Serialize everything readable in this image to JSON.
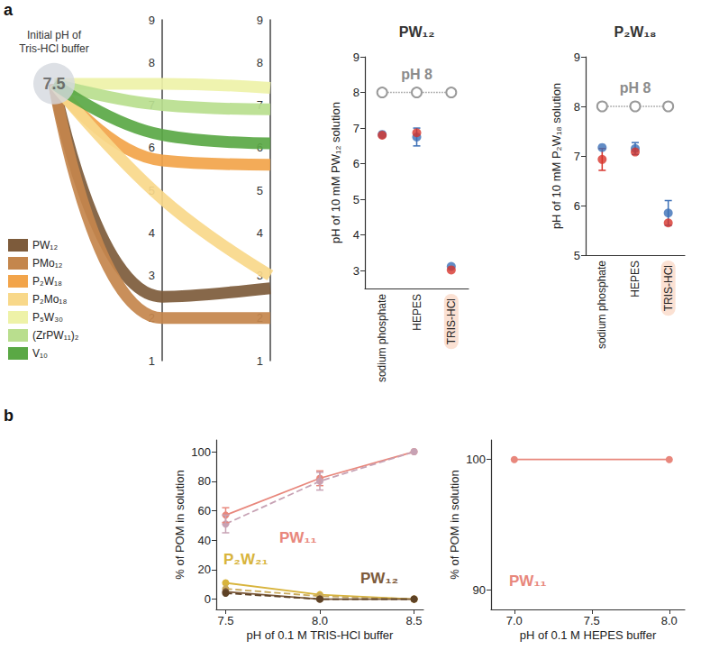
{
  "chart_data": [
    {
      "type": "line",
      "panel": "a",
      "annotation": "Initial pH of Tris-HCl buffer",
      "initial_value": 7.5,
      "categories": [
        null,
        null,
        null
      ],
      "ylim": [
        1,
        9
      ],
      "yticks": [
        1,
        2,
        3,
        4,
        5,
        6,
        7,
        8,
        9
      ],
      "legend": "lower left",
      "series": [
        {
          "name": "PW₁₂",
          "color": "#7d5b3b",
          "values": [
            7.5,
            2.5,
            2.7
          ]
        },
        {
          "name": "PMo₁₂",
          "color": "#c4864c",
          "values": [
            7.5,
            2.0,
            2.0
          ]
        },
        {
          "name": "P₂W₁₈",
          "color": "#f2a44a",
          "values": [
            7.5,
            5.7,
            5.6
          ]
        },
        {
          "name": "P₂Mo₁₈",
          "color": "#f8d88a",
          "values": [
            7.5,
            4.8,
            3.0
          ]
        },
        {
          "name": "P₅W₃₀",
          "color": "#eef2a8",
          "values": [
            7.5,
            7.5,
            7.4
          ]
        },
        {
          "name": "(ZrPW₁₁)₂",
          "color": "#b9de8e",
          "values": [
            7.5,
            7.0,
            6.9
          ]
        },
        {
          "name": "V₁₀",
          "color": "#5aa845",
          "values": [
            7.5,
            6.3,
            6.1
          ]
        }
      ]
    },
    {
      "type": "scatter",
      "title": "PW₁₂",
      "ylabel": "pH of 10 mM PW₁₂ solution",
      "categories": [
        "sodium phosphate",
        "HEPES",
        "TRIS-HCl"
      ],
      "ylim": [
        2.5,
        9
      ],
      "yticks": [
        3,
        4,
        5,
        6,
        7,
        8,
        9
      ],
      "reference": {
        "value": 8,
        "label": "pH 8",
        "marker": "open circle",
        "line_style": "dotted",
        "color": "#9a9a9a"
      },
      "series": [
        {
          "color": "#3b6fb6",
          "marker": "circle",
          "values": [
            6.82,
            6.75,
            3.12
          ],
          "errors": [
            null,
            0.25,
            null
          ]
        },
        {
          "color": "#d7332b",
          "marker": "circle",
          "values": [
            6.8,
            6.87,
            3.02
          ],
          "errors": [
            null,
            null,
            null
          ]
        }
      ]
    },
    {
      "type": "scatter",
      "title": "P₂W₁₈",
      "ylabel": "pH of 10 mM P₂W₁₈ solution",
      "categories": [
        "sodium phosphate",
        "HEPES",
        "TRIS-HCl"
      ],
      "ylim": [
        5,
        9
      ],
      "yticks": [
        5,
        6,
        7,
        8,
        9
      ],
      "reference": {
        "value": 8,
        "label": "pH 8",
        "marker": "open circle",
        "line_style": "dotted",
        "color": "#9a9a9a"
      },
      "series": [
        {
          "color": "#3b6fb6",
          "marker": "circle",
          "values": [
            7.17,
            7.15,
            5.85
          ],
          "errors": [
            null,
            0.12,
            0.25
          ]
        },
        {
          "color": "#d7332b",
          "marker": "circle",
          "values": [
            6.93,
            7.08,
            5.65
          ],
          "errors": [
            0.22,
            null,
            null
          ]
        }
      ]
    },
    {
      "type": "line",
      "panel": "b",
      "xlabel": "pH of 0.1 M TRIS-HCl buffer",
      "ylabel": "% of POM in solution",
      "x": [
        7.5,
        8,
        8.5
      ],
      "xlim": [
        7.45,
        8.55
      ],
      "xticks": [
        7.5,
        {
          "value": 8,
          "label": "8.0"
        },
        8.5
      ],
      "ylim": [
        -7,
        108
      ],
      "yticks": [
        0,
        20,
        40,
        60,
        80,
        100
      ],
      "series": [
        {
          "name": "PW₁₁",
          "color": "#e8877c",
          "line_style": "solid",
          "marker": "circle",
          "values": [
            57,
            82,
            100
          ],
          "errors": [
            5,
            5,
            null
          ]
        },
        {
          "name": "PW₁₁",
          "color": "#c7a2b4",
          "line_style": "dashed",
          "marker": "circle",
          "values": [
            51,
            80,
            100
          ],
          "errors": [
            6,
            6,
            null
          ]
        },
        {
          "name": "P₂W₂₁",
          "color": "#d8b43c",
          "line_style": "solid",
          "marker": "circle",
          "values": [
            11,
            3,
            0
          ]
        },
        {
          "name": "P₂W₂₁",
          "color": "#c9a95a",
          "line_style": "dashed",
          "marker": "circle",
          "values": [
            7,
            2,
            0
          ]
        },
        {
          "name": "PW₁₂",
          "color": "#7d5b3b",
          "line_style": "solid",
          "marker": "circle",
          "values": [
            5,
            0,
            0
          ]
        },
        {
          "name": "PW₁₂",
          "color": "#5e4226",
          "line_style": "dashed",
          "marker": "circle",
          "values": [
            4,
            0,
            0
          ]
        }
      ]
    },
    {
      "type": "line",
      "xlabel": "pH of 0.1 M HEPES buffer",
      "ylabel": "% of POM in solution",
      "x": [
        7,
        8
      ],
      "xlim": [
        6.85,
        8.1
      ],
      "xticks": [
        {
          "value": 7,
          "label": "7.0"
        },
        7.5,
        {
          "value": 8,
          "label": "8.0"
        }
      ],
      "ylim": [
        88.5,
        101.5
      ],
      "yticks": [
        90,
        100
      ],
      "series": [
        {
          "name": "PW₁₁",
          "color": "#e8877c",
          "line_style": "solid",
          "marker": "circle",
          "values": [
            100,
            100
          ]
        }
      ]
    }
  ]
}
